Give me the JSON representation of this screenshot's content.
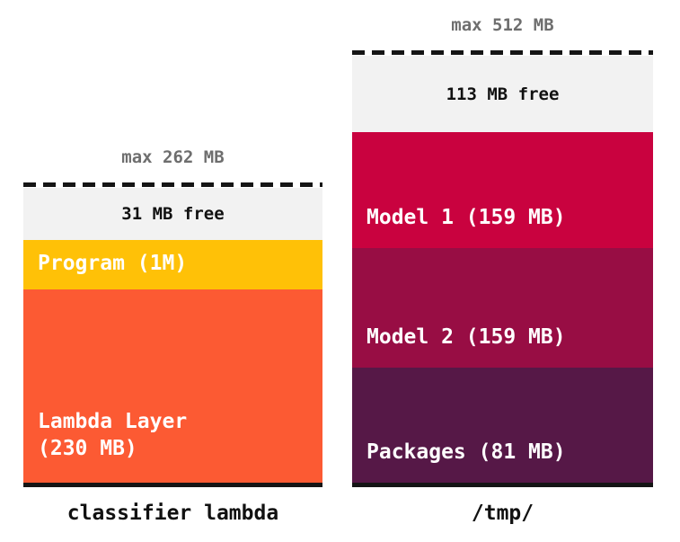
{
  "charts": [
    {
      "max_label": "max 262 MB",
      "free_label": "31 MB free",
      "title": "classifier lambda",
      "segments": [
        {
          "name": "program",
          "line1": "Program (1M)",
          "line2": "",
          "color": "#FFC107"
        },
        {
          "name": "lambda-layer",
          "line1": "Lambda Layer",
          "line2": "(230 MB)",
          "color": "#FC5A33"
        }
      ]
    },
    {
      "max_label": "max 512 MB",
      "free_label": "113 MB free",
      "title": "/tmp/",
      "segments": [
        {
          "name": "model-1",
          "line1": "Model 1 (159 MB)",
          "line2": "",
          "color": "#C9023F"
        },
        {
          "name": "model-2",
          "line1": "Model 2 (159 MB)",
          "line2": "",
          "color": "#980D44"
        },
        {
          "name": "packages",
          "line1": "Packages (81 MB)",
          "line2": "",
          "color": "#561847"
        }
      ]
    }
  ],
  "colors": {
    "background": "#FFFFFF",
    "free_bg": "#F2F2F2",
    "max_label_text": "#6E6E6E",
    "baseline": "#151515",
    "dash": "#151515",
    "segment_text": "#FFFFFF"
  },
  "chart_data": [
    {
      "type": "bar",
      "title": "classifier lambda",
      "max_mb": 262,
      "free_mb": 31,
      "annotations": [
        "max 262 MB",
        "31 MB free"
      ],
      "segments": [
        {
          "label": "Program (1M)",
          "mb": 1,
          "color": "#FFC107"
        },
        {
          "label": "Lambda Layer (230 MB)",
          "mb": 230,
          "color": "#FC5A33"
        }
      ],
      "layout": "stacked vertical bar, dashed line marks max capacity, free space shown light gray at top"
    },
    {
      "type": "bar",
      "title": "/tmp/",
      "max_mb": 512,
      "free_mb": 113,
      "annotations": [
        "max 512 MB",
        "113 MB free"
      ],
      "segments": [
        {
          "label": "Model 1 (159 MB)",
          "mb": 159,
          "color": "#C9023F"
        },
        {
          "label": "Model 2 (159 MB)",
          "mb": 159,
          "color": "#980D44"
        },
        {
          "label": "Packages (81 MB)",
          "mb": 81,
          "color": "#561847"
        }
      ],
      "layout": "stacked vertical bar, dashed line marks max capacity, free space shown light gray at top"
    }
  ]
}
